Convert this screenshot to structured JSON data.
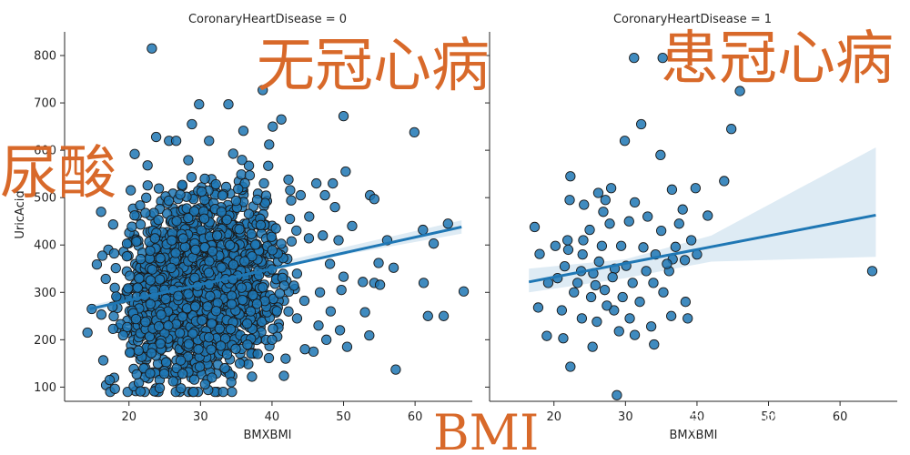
{
  "chart_data": [
    {
      "type": "scatter",
      "title": "CoronaryHeartDisease = 0",
      "xlabel": "BMXBMI",
      "ylabel": "UricAcid",
      "xlim": [
        11,
        68
      ],
      "ylim": [
        70,
        850
      ],
      "xticks": [
        20,
        30,
        40,
        50,
        60
      ],
      "yticks": [
        100,
        200,
        300,
        400,
        500,
        600,
        700,
        800
      ],
      "marker_color": "#1f77b4",
      "edge_color": "#1a1a1a",
      "regression": {
        "x_start": 14.5,
        "y_start": 265,
        "x_end": 66.5,
        "y_end": 438
      },
      "ci_band": {
        "upper": [
          [
            14.5,
            272
          ],
          [
            40,
            360
          ],
          [
            66.5,
            452
          ]
        ],
        "lower": [
          [
            14.5,
            258
          ],
          [
            40,
            352
          ],
          [
            66.5,
            424
          ]
        ]
      },
      "cloud": {
        "count": 1600,
        "x_range": [
          15,
          48
        ],
        "y_range": [
          90,
          630
        ],
        "x_center": 30,
        "y_center": 310
      },
      "points": [
        {
          "x": 23.2,
          "y": 815
        },
        {
          "x": 38.7,
          "y": 727
        },
        {
          "x": 29.8,
          "y": 697
        },
        {
          "x": 33.9,
          "y": 697
        },
        {
          "x": 41.3,
          "y": 665
        },
        {
          "x": 50.0,
          "y": 672
        },
        {
          "x": 59.9,
          "y": 638
        },
        {
          "x": 40.1,
          "y": 650
        },
        {
          "x": 50.3,
          "y": 555
        },
        {
          "x": 53.7,
          "y": 505
        },
        {
          "x": 54.3,
          "y": 497
        },
        {
          "x": 61.1,
          "y": 432
        },
        {
          "x": 62.6,
          "y": 403
        },
        {
          "x": 64.6,
          "y": 445
        },
        {
          "x": 66.8,
          "y": 302
        },
        {
          "x": 61.2,
          "y": 320
        },
        {
          "x": 61.8,
          "y": 250
        },
        {
          "x": 64.0,
          "y": 250
        },
        {
          "x": 57.3,
          "y": 137
        },
        {
          "x": 57.0,
          "y": 352
        },
        {
          "x": 56.1,
          "y": 410
        },
        {
          "x": 54.9,
          "y": 362
        },
        {
          "x": 54.3,
          "y": 320
        },
        {
          "x": 55.1,
          "y": 316
        },
        {
          "x": 52.7,
          "y": 322
        },
        {
          "x": 53.0,
          "y": 258
        },
        {
          "x": 53.6,
          "y": 209
        },
        {
          "x": 50.5,
          "y": 185
        },
        {
          "x": 50.0,
          "y": 333
        },
        {
          "x": 51.2,
          "y": 440
        },
        {
          "x": 48.5,
          "y": 530
        },
        {
          "x": 47.4,
          "y": 505
        },
        {
          "x": 14.8,
          "y": 265
        },
        {
          "x": 14.2,
          "y": 215
        },
        {
          "x": 16.1,
          "y": 470
        },
        {
          "x": 24.3,
          "y": 98
        },
        {
          "x": 21.6,
          "y": 91
        },
        {
          "x": 17.3,
          "y": 115
        },
        {
          "x": 20.8,
          "y": 592
        },
        {
          "x": 22.6,
          "y": 568
        },
        {
          "x": 23.8,
          "y": 628
        },
        {
          "x": 25.6,
          "y": 620
        },
        {
          "x": 26.6,
          "y": 620
        },
        {
          "x": 28.8,
          "y": 655
        },
        {
          "x": 31.2,
          "y": 620
        },
        {
          "x": 30.6,
          "y": 540
        },
        {
          "x": 36.0,
          "y": 641
        },
        {
          "x": 39.6,
          "y": 612
        },
        {
          "x": 42.3,
          "y": 538
        },
        {
          "x": 46.2,
          "y": 530
        },
        {
          "x": 48.8,
          "y": 480
        },
        {
          "x": 45.2,
          "y": 460
        },
        {
          "x": 47.1,
          "y": 420
        },
        {
          "x": 49.3,
          "y": 410
        },
        {
          "x": 48.1,
          "y": 360
        },
        {
          "x": 49.7,
          "y": 305
        },
        {
          "x": 46.7,
          "y": 300
        },
        {
          "x": 48.2,
          "y": 260
        },
        {
          "x": 46.5,
          "y": 230
        },
        {
          "x": 47.6,
          "y": 200
        },
        {
          "x": 45.8,
          "y": 175
        },
        {
          "x": 49.5,
          "y": 220
        },
        {
          "x": 43.5,
          "y": 245
        },
        {
          "x": 44.6,
          "y": 180
        },
        {
          "x": 38.0,
          "y": 170
        },
        {
          "x": 35.5,
          "y": 150
        },
        {
          "x": 41.9,
          "y": 160
        },
        {
          "x": 37.2,
          "y": 122
        },
        {
          "x": 33.4,
          "y": 140
        },
        {
          "x": 31.6,
          "y": 120
        },
        {
          "x": 29.9,
          "y": 143
        },
        {
          "x": 27.5,
          "y": 128
        },
        {
          "x": 40.0,
          "y": 200
        },
        {
          "x": 42.5,
          "y": 455
        },
        {
          "x": 44.0,
          "y": 505
        }
      ]
    },
    {
      "type": "scatter",
      "title": "CoronaryHeartDisease = 1",
      "xlabel": "BMXBMI",
      "ylabel": "",
      "xlim": [
        11,
        68
      ],
      "ylim": [
        70,
        850
      ],
      "xticks": [
        20,
        30,
        40,
        50,
        60
      ],
      "yticks": [
        100,
        200,
        300,
        400,
        500,
        600,
        700,
        800
      ],
      "marker_color": "#1f77b4",
      "edge_color": "#1a1a1a",
      "regression": {
        "x_start": 16.5,
        "y_start": 322,
        "x_end": 65.0,
        "y_end": 463
      },
      "ci_band": {
        "upper": [
          [
            16.5,
            350
          ],
          [
            30,
            370
          ],
          [
            42,
            420
          ],
          [
            65,
            606
          ]
        ],
        "lower": [
          [
            16.5,
            300
          ],
          [
            30,
            330
          ],
          [
            42,
            365
          ],
          [
            65,
            375
          ]
        ]
      },
      "points": [
        {
          "x": 31.2,
          "y": 795
        },
        {
          "x": 35.2,
          "y": 795
        },
        {
          "x": 46.0,
          "y": 725
        },
        {
          "x": 32.2,
          "y": 655
        },
        {
          "x": 44.8,
          "y": 645
        },
        {
          "x": 29.9,
          "y": 620
        },
        {
          "x": 34.9,
          "y": 590
        },
        {
          "x": 22.3,
          "y": 545
        },
        {
          "x": 43.8,
          "y": 535
        },
        {
          "x": 39.8,
          "y": 520
        },
        {
          "x": 36.5,
          "y": 517
        },
        {
          "x": 28.0,
          "y": 520
        },
        {
          "x": 26.2,
          "y": 510
        },
        {
          "x": 22.2,
          "y": 495
        },
        {
          "x": 24.2,
          "y": 485
        },
        {
          "x": 27.2,
          "y": 495
        },
        {
          "x": 31.3,
          "y": 490
        },
        {
          "x": 33.1,
          "y": 460
        },
        {
          "x": 38.0,
          "y": 475
        },
        {
          "x": 41.5,
          "y": 462
        },
        {
          "x": 17.3,
          "y": 438
        },
        {
          "x": 20.2,
          "y": 398
        },
        {
          "x": 18.0,
          "y": 381
        },
        {
          "x": 22.0,
          "y": 390
        },
        {
          "x": 25.0,
          "y": 432
        },
        {
          "x": 27.8,
          "y": 445
        },
        {
          "x": 30.5,
          "y": 450
        },
        {
          "x": 35.0,
          "y": 430
        },
        {
          "x": 37.5,
          "y": 445
        },
        {
          "x": 39.2,
          "y": 410
        },
        {
          "x": 40.0,
          "y": 380
        },
        {
          "x": 38.3,
          "y": 368
        },
        {
          "x": 36.6,
          "y": 370
        },
        {
          "x": 34.2,
          "y": 380
        },
        {
          "x": 32.5,
          "y": 395
        },
        {
          "x": 29.4,
          "y": 398
        },
        {
          "x": 26.7,
          "y": 398
        },
        {
          "x": 24.1,
          "y": 410
        },
        {
          "x": 21.5,
          "y": 355
        },
        {
          "x": 23.8,
          "y": 345
        },
        {
          "x": 25.5,
          "y": 340
        },
        {
          "x": 28.5,
          "y": 350
        },
        {
          "x": 31.0,
          "y": 320
        },
        {
          "x": 33.9,
          "y": 320
        },
        {
          "x": 36.1,
          "y": 345
        },
        {
          "x": 19.2,
          "y": 320
        },
        {
          "x": 20.5,
          "y": 330
        },
        {
          "x": 22.8,
          "y": 300
        },
        {
          "x": 25.2,
          "y": 290
        },
        {
          "x": 27.1,
          "y": 305
        },
        {
          "x": 29.6,
          "y": 290
        },
        {
          "x": 32.0,
          "y": 280
        },
        {
          "x": 35.3,
          "y": 300
        },
        {
          "x": 38.4,
          "y": 280
        },
        {
          "x": 38.7,
          "y": 245
        },
        {
          "x": 17.8,
          "y": 268
        },
        {
          "x": 21.1,
          "y": 262
        },
        {
          "x": 23.9,
          "y": 245
        },
        {
          "x": 26.0,
          "y": 238
        },
        {
          "x": 28.4,
          "y": 262
        },
        {
          "x": 30.6,
          "y": 245
        },
        {
          "x": 33.6,
          "y": 228
        },
        {
          "x": 36.4,
          "y": 250
        },
        {
          "x": 19.0,
          "y": 208
        },
        {
          "x": 21.3,
          "y": 203
        },
        {
          "x": 25.4,
          "y": 185
        },
        {
          "x": 29.1,
          "y": 218
        },
        {
          "x": 31.3,
          "y": 210
        },
        {
          "x": 22.3,
          "y": 143
        },
        {
          "x": 28.8,
          "y": 83
        },
        {
          "x": 35.8,
          "y": 360
        },
        {
          "x": 34.0,
          "y": 190
        },
        {
          "x": 24.0,
          "y": 380
        },
        {
          "x": 26.3,
          "y": 365
        },
        {
          "x": 28.2,
          "y": 332
        },
        {
          "x": 30.1,
          "y": 356
        },
        {
          "x": 27.4,
          "y": 272
        },
        {
          "x": 25.8,
          "y": 315
        },
        {
          "x": 23.3,
          "y": 320
        },
        {
          "x": 64.5,
          "y": 345
        },
        {
          "x": 21.9,
          "y": 410
        },
        {
          "x": 32.9,
          "y": 345
        },
        {
          "x": 37.0,
          "y": 396
        },
        {
          "x": 26.9,
          "y": 470
        }
      ]
    }
  ],
  "overlays": {
    "no_chd": "无冠心病",
    "has_chd": "患冠心病",
    "uric_acid": "尿酸",
    "bmi": "BMI",
    "overlay_color": "#d8692a"
  },
  "watermark": "知乎 @学爬树的佩奇"
}
